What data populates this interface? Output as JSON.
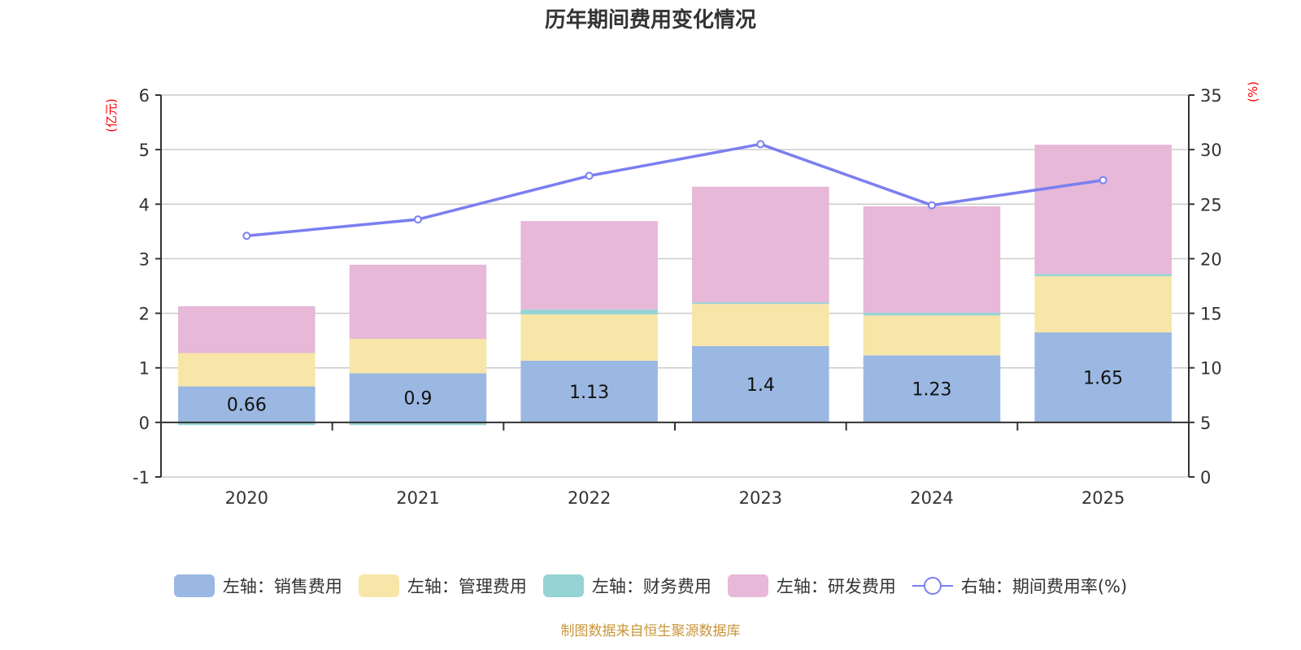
{
  "title": "历年期间费用变化情况",
  "footer": "制图数据来自恒生聚源数据库",
  "colors": {
    "sales": "#9bb8e2",
    "admin": "#f8e6a8",
    "finance": "#96d3d4",
    "rnd": "#e7b8d8",
    "rate_line": "#7b7ff0",
    "unit_label": "#ff0000",
    "footer": "#c8963a"
  },
  "chart_data": {
    "type": "bar",
    "stacked": true,
    "title": "历年期间费用变化情况",
    "categories": [
      "2020",
      "2021",
      "2022",
      "2023",
      "2024",
      "2025"
    ],
    "left_axis": {
      "label": "(亿元)",
      "ylim": [
        -1,
        6
      ],
      "ticks": [
        "-1",
        "0",
        "1",
        "2",
        "3",
        "4",
        "5",
        "6"
      ]
    },
    "right_axis": {
      "label": "(%)",
      "ylim": [
        0,
        35
      ],
      "ticks": [
        "0",
        "5",
        "10",
        "15",
        "20",
        "25",
        "30",
        "35"
      ]
    },
    "grid": true,
    "legend_position": "bottom",
    "series": [
      {
        "name": "左轴：销售费用",
        "key": "sales",
        "axis": "left",
        "type": "bar",
        "values": [
          0.66,
          0.9,
          1.13,
          1.4,
          1.23,
          1.65
        ],
        "labels": [
          "0.66",
          "0.9",
          "1.13",
          "1.4",
          "1.23",
          "1.65"
        ]
      },
      {
        "name": "左轴：管理费用",
        "key": "admin",
        "axis": "left",
        "type": "bar",
        "values": [
          0.61,
          0.63,
          0.85,
          0.77,
          0.73,
          1.03
        ]
      },
      {
        "name": "左轴：财务费用",
        "key": "finance",
        "axis": "left",
        "type": "bar",
        "values": [
          -0.05,
          -0.05,
          0.09,
          0.03,
          0.05,
          0.04
        ]
      },
      {
        "name": "左轴：研发费用",
        "key": "rnd",
        "axis": "left",
        "type": "bar",
        "values": [
          0.86,
          1.36,
          1.62,
          2.12,
          1.95,
          2.37
        ]
      },
      {
        "name": "右轴：期间费用率(%)",
        "key": "rate_line",
        "axis": "right",
        "type": "line",
        "values": [
          22.1,
          23.6,
          27.6,
          30.5,
          24.9,
          27.2
        ]
      }
    ]
  },
  "legend": [
    {
      "label": "左轴：销售费用",
      "key": "sales",
      "kind": "swatch"
    },
    {
      "label": "左轴：管理费用",
      "key": "admin",
      "kind": "swatch"
    },
    {
      "label": "左轴：财务费用",
      "key": "finance",
      "kind": "swatch"
    },
    {
      "label": "左轴：研发费用",
      "key": "rnd",
      "kind": "swatch"
    },
    {
      "label": "右轴：期间费用率(%)",
      "key": "rate_line",
      "kind": "line"
    }
  ]
}
